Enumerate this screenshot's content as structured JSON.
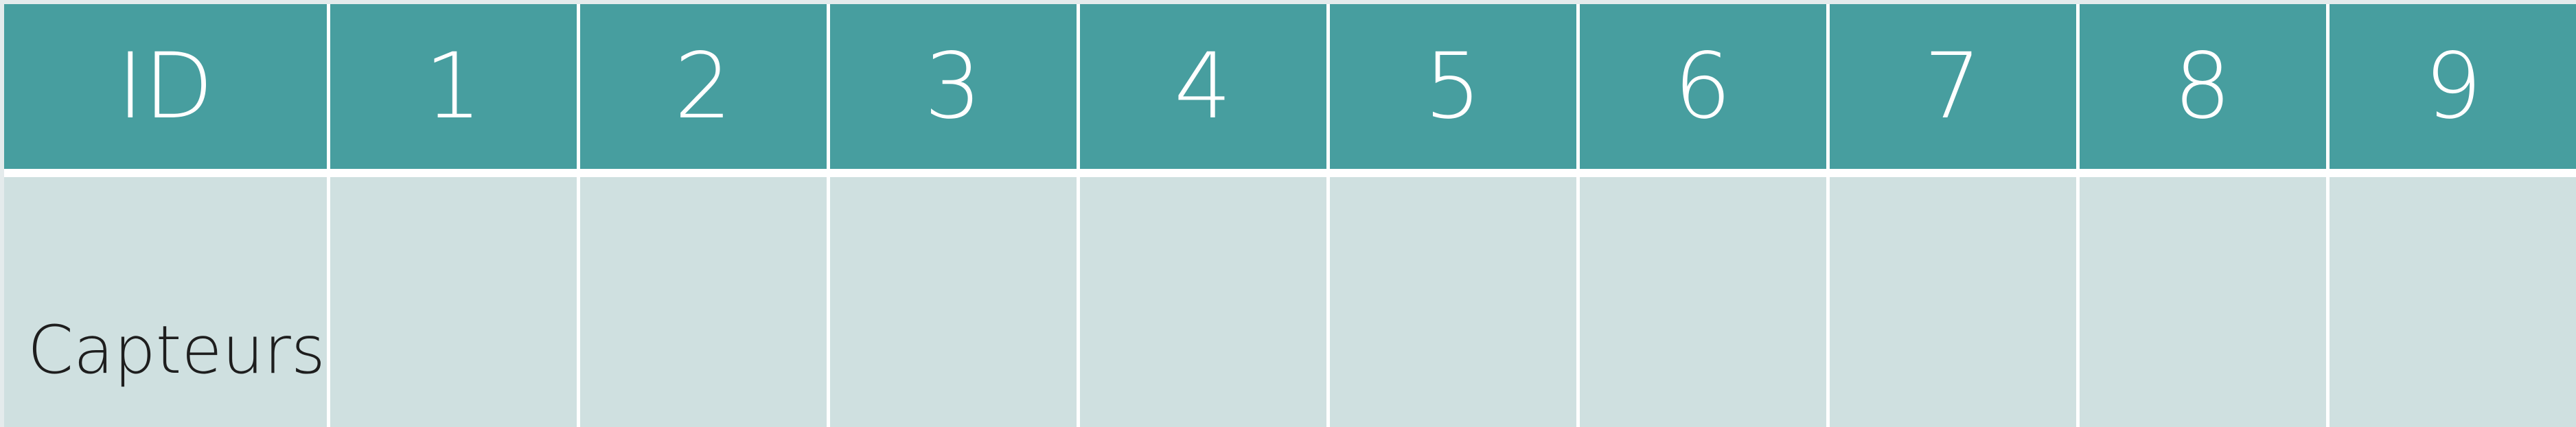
{
  "table": {
    "header_first": "ID",
    "columns": [
      "1",
      "2",
      "3",
      "4",
      "5",
      "6",
      "7",
      "8",
      "9"
    ],
    "row_label": "Capteurs",
    "cells": [
      "",
      "",
      "",
      "",
      "",
      "",
      "",
      "",
      ""
    ]
  },
  "colors": {
    "header_background": "#479e9f",
    "header_text": "#ffffff",
    "body_background": "#cfe0e0",
    "grid_line": "#ffffff"
  }
}
